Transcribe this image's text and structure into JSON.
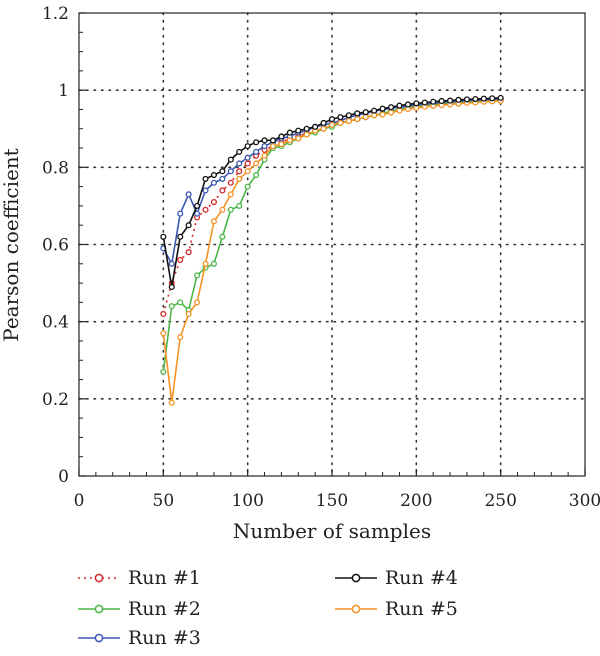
{
  "chart_data": {
    "type": "line",
    "xlabel": "Number of samples",
    "ylabel": "Pearson coefficient",
    "xlim": [
      0,
      300
    ],
    "ylim": [
      0,
      1.2
    ],
    "xticks": [
      "0",
      "50",
      "100",
      "150",
      "200",
      "250",
      "300"
    ],
    "yticks": [
      "0",
      "0.2",
      "0.4",
      "0.6",
      "0.8",
      "1",
      "1.2"
    ],
    "grid": true,
    "legend_placement": "below",
    "series": [
      {
        "name": "Run #1",
        "color": "#d62728",
        "line_style": "dotted",
        "x": [
          50,
          55,
          60,
          65,
          70,
          75,
          80,
          85,
          90,
          95,
          100,
          105,
          110,
          115,
          120,
          125,
          130,
          135,
          140,
          145,
          150,
          155,
          160,
          165,
          170,
          175,
          180,
          185,
          190,
          195,
          200,
          205,
          210,
          215,
          220,
          225,
          230,
          235,
          240,
          245,
          250
        ],
        "y": [
          0.42,
          0.5,
          0.56,
          0.58,
          0.67,
          0.69,
          0.71,
          0.74,
          0.76,
          0.79,
          0.81,
          0.83,
          0.845,
          0.855,
          0.865,
          0.875,
          0.88,
          0.89,
          0.895,
          0.9,
          0.91,
          0.915,
          0.92,
          0.925,
          0.93,
          0.935,
          0.94,
          0.945,
          0.95,
          0.955,
          0.958,
          0.961,
          0.963,
          0.965,
          0.967,
          0.969,
          0.971,
          0.972,
          0.973,
          0.974,
          0.975
        ]
      },
      {
        "name": "Run #2",
        "color": "#4cb748",
        "line_style": "solid",
        "x": [
          50,
          55,
          60,
          65,
          70,
          75,
          80,
          85,
          90,
          95,
          100,
          105,
          110,
          115,
          120,
          125,
          130,
          135,
          140,
          145,
          150,
          155,
          160,
          165,
          170,
          175,
          180,
          185,
          190,
          195,
          200,
          205,
          210,
          215,
          220,
          225,
          230,
          235,
          240,
          245,
          250
        ],
        "y": [
          0.27,
          0.44,
          0.45,
          0.43,
          0.52,
          0.54,
          0.55,
          0.62,
          0.69,
          0.7,
          0.75,
          0.78,
          0.82,
          0.85,
          0.855,
          0.865,
          0.875,
          0.885,
          0.89,
          0.9,
          0.905,
          0.915,
          0.92,
          0.925,
          0.93,
          0.935,
          0.94,
          0.945,
          0.95,
          0.955,
          0.958,
          0.961,
          0.963,
          0.965,
          0.967,
          0.969,
          0.971,
          0.972,
          0.973,
          0.974,
          0.975
        ]
      },
      {
        "name": "Run #3",
        "color": "#3a56b0",
        "line_style": "solid",
        "x": [
          50,
          55,
          60,
          65,
          70,
          75,
          80,
          85,
          90,
          95,
          100,
          105,
          110,
          115,
          120,
          125,
          130,
          135,
          140,
          145,
          150,
          155,
          160,
          165,
          170,
          175,
          180,
          185,
          190,
          195,
          200,
          205,
          210,
          215,
          220,
          225,
          230,
          235,
          240,
          245,
          250
        ],
        "y": [
          0.59,
          0.55,
          0.68,
          0.73,
          0.68,
          0.74,
          0.76,
          0.77,
          0.79,
          0.81,
          0.825,
          0.84,
          0.855,
          0.865,
          0.875,
          0.88,
          0.89,
          0.895,
          0.905,
          0.91,
          0.915,
          0.92,
          0.93,
          0.935,
          0.94,
          0.945,
          0.95,
          0.953,
          0.956,
          0.959,
          0.962,
          0.964,
          0.966,
          0.968,
          0.97,
          0.971,
          0.973,
          0.974,
          0.975,
          0.976,
          0.977
        ]
      },
      {
        "name": "Run #4",
        "color": "#111111",
        "line_style": "solid",
        "x": [
          50,
          55,
          60,
          65,
          70,
          75,
          80,
          85,
          90,
          95,
          100,
          105,
          110,
          115,
          120,
          125,
          130,
          135,
          140,
          145,
          150,
          155,
          160,
          165,
          170,
          175,
          180,
          185,
          190,
          195,
          200,
          205,
          210,
          215,
          220,
          225,
          230,
          235,
          240,
          245,
          250
        ],
        "y": [
          0.62,
          0.49,
          0.62,
          0.65,
          0.7,
          0.77,
          0.78,
          0.79,
          0.82,
          0.84,
          0.855,
          0.865,
          0.87,
          0.87,
          0.88,
          0.89,
          0.895,
          0.9,
          0.905,
          0.915,
          0.925,
          0.93,
          0.935,
          0.94,
          0.943,
          0.947,
          0.952,
          0.956,
          0.96,
          0.963,
          0.966,
          0.968,
          0.97,
          0.972,
          0.973,
          0.975,
          0.976,
          0.977,
          0.978,
          0.979,
          0.98
        ]
      },
      {
        "name": "Run #5",
        "color": "#f39325",
        "line_style": "solid",
        "x": [
          50,
          55,
          60,
          65,
          70,
          75,
          80,
          85,
          90,
          95,
          100,
          105,
          110,
          115,
          120,
          125,
          130,
          135,
          140,
          145,
          150,
          155,
          160,
          165,
          170,
          175,
          180,
          185,
          190,
          195,
          200,
          205,
          210,
          215,
          220,
          225,
          230,
          235,
          240,
          245,
          250
        ],
        "y": [
          0.37,
          0.19,
          0.36,
          0.42,
          0.45,
          0.55,
          0.66,
          0.69,
          0.73,
          0.77,
          0.79,
          0.81,
          0.83,
          0.855,
          0.86,
          0.87,
          0.875,
          0.885,
          0.895,
          0.9,
          0.91,
          0.915,
          0.92,
          0.925,
          0.93,
          0.935,
          0.937,
          0.942,
          0.947,
          0.951,
          0.954,
          0.957,
          0.959,
          0.961,
          0.963,
          0.965,
          0.967,
          0.968,
          0.97,
          0.971,
          0.972
        ]
      }
    ]
  }
}
